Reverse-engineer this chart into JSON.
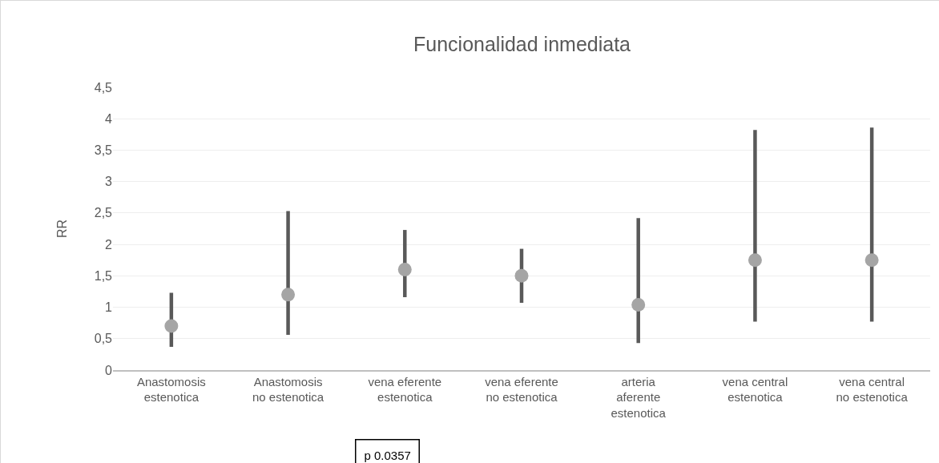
{
  "chart_data": {
    "type": "scatter",
    "title": "Funcionalidad inmediata",
    "ylabel": "RR",
    "categories": [
      "Anastomosis estenotica",
      "Anastomosis no estenotica",
      "vena eferente estenotica",
      "vena eferente no estenotica",
      "arteria aferente estenotica",
      "vena central estenotica",
      "vena central no estenotica"
    ],
    "series": [
      {
        "color": "#a5a5a5",
        "values": [
          0.7,
          1.2,
          1.6,
          1.5,
          1.04,
          1.75,
          1.75
        ],
        "errors": [
          [
            0.37,
            1.23
          ],
          [
            0.56,
            2.53
          ],
          [
            1.16,
            2.23
          ],
          [
            1.07,
            1.93
          ],
          [
            0.43,
            2.42
          ],
          [
            0.77,
            3.82
          ],
          [
            0.77,
            3.86
          ]
        ]
      }
    ],
    "ylim": [
      0,
      4.5
    ],
    "yticks": [
      {
        "value": 0,
        "label": "0"
      },
      {
        "value": 0.5,
        "label": "0,5"
      },
      {
        "value": 1,
        "label": "1"
      },
      {
        "value": 1.5,
        "label": "1,5"
      },
      {
        "value": 2,
        "label": "2"
      },
      {
        "value": 2.5,
        "label": "2,5"
      },
      {
        "value": 3,
        "label": "3"
      },
      {
        "value": 3.5,
        "label": "3,5"
      },
      {
        "value": 4,
        "label": "4"
      },
      {
        "value": 4.5,
        "label": "4,5"
      }
    ],
    "grid": "y",
    "legend": false,
    "marker": "circle",
    "annotations": [
      "p 0.0357"
    ]
  }
}
